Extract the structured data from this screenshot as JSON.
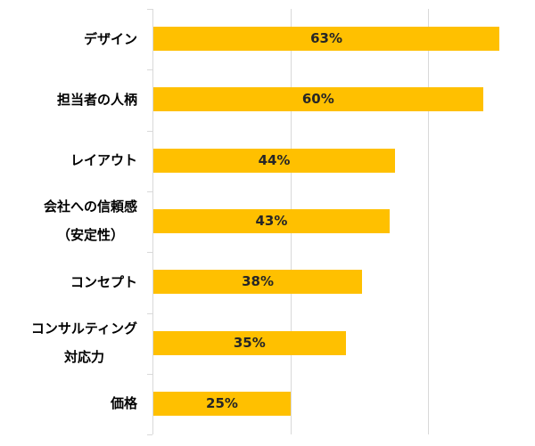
{
  "chart_data": {
    "type": "bar",
    "orientation": "horizontal",
    "title": "",
    "xlabel": "",
    "ylabel": "",
    "categories": [
      "デザイン",
      "担当者の人柄",
      "レイアウト",
      "会社への信頼感（安定性）",
      "コンセプト",
      "コンサルティング対応力",
      "価格"
    ],
    "category_lines": [
      [
        "デザイン"
      ],
      [
        "担当者の人柄"
      ],
      [
        "レイアウト"
      ],
      [
        "会社への信頼感",
        "（安定性）"
      ],
      [
        "コンセプト"
      ],
      [
        "コンサルティング",
        "対応力"
      ],
      [
        "価格"
      ]
    ],
    "values": [
      63,
      60,
      44,
      43,
      38,
      35,
      25
    ],
    "value_labels": [
      "63%",
      "60%",
      "44%",
      "43%",
      "38%",
      "35%",
      "25%"
    ],
    "xlim": [
      0,
      75
    ],
    "gridlines_at": [
      25,
      50
    ],
    "grid": true,
    "legend": null,
    "bar_color": "#ffc000"
  }
}
